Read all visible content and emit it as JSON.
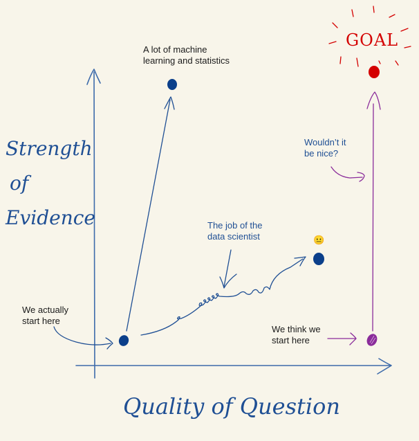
{
  "axes": {
    "y_label": [
      "Strength",
      "of",
      "Evidence"
    ],
    "x_label": "Quality of Question"
  },
  "annotations": {
    "ml_stats": [
      "A lot of machine",
      "learning and statistics"
    ],
    "data_scientist": [
      "The job of the",
      "data scientist"
    ],
    "actually_start": [
      "We actually",
      "start here"
    ],
    "think_start": [
      "We think we",
      "start here"
    ],
    "wouldnt_it": [
      "Wouldn’t it",
      "be nice?"
    ],
    "goal": "GOAL",
    "emoji": "😐"
  },
  "colors": {
    "background": "#f8f5ea",
    "blue": "#1f4f94",
    "dot_blue": "#0b3f8a",
    "purple": "#8a2b9a",
    "red": "#d40000"
  }
}
